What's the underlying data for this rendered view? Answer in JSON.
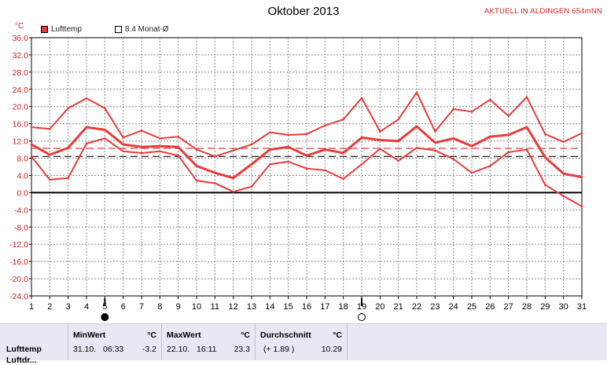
{
  "header": {
    "title": "Oktober 2013",
    "station": "AKTUELL IN ALDINGEN 654mNN",
    "unit": "°C"
  },
  "legend": [
    {
      "label": "Lufttemp",
      "color": "#e83c3c",
      "filled": true
    },
    {
      "label": "8.4 Monat-Ø",
      "color": "#ffffff",
      "filled": false
    }
  ],
  "moon_marks": [
    {
      "day": 5,
      "phase": "new-moon"
    },
    {
      "day": 19,
      "phase": "full-moon"
    }
  ],
  "chart_data": {
    "type": "line",
    "title": "Oktober 2013",
    "ylabel": "°C",
    "x": [
      1,
      2,
      3,
      4,
      5,
      6,
      7,
      8,
      9,
      10,
      11,
      12,
      13,
      14,
      15,
      16,
      17,
      18,
      19,
      20,
      21,
      22,
      23,
      24,
      25,
      26,
      27,
      28,
      29,
      30,
      31
    ],
    "xlim": [
      1,
      31
    ],
    "ylim": [
      -24,
      36
    ],
    "yticks": [
      "36.0",
      "32.0",
      "28.0",
      "24.0",
      "20.0",
      "16.0",
      "12.0",
      "8.0",
      "4.0",
      "0.0",
      "-4.0",
      "-8.0",
      "-12.0",
      "-16.0",
      "-20.0",
      "-24.0"
    ],
    "grid": true,
    "series": [
      {
        "role": "max",
        "color": "#e83c3c",
        "values": [
          15.2,
          14.8,
          19.6,
          21.9,
          19.6,
          12.8,
          14.4,
          12.6,
          13.0,
          10.0,
          8.4,
          9.8,
          11.2,
          14.0,
          13.4,
          13.6,
          15.6,
          17.0,
          22.0,
          14.2,
          17.0,
          23.3,
          14.2,
          19.4,
          18.8,
          21.6,
          17.8,
          22.2,
          13.6,
          11.8,
          13.8
        ]
      },
      {
        "role": "avg",
        "color": "#e83c3c",
        "values": [
          11.2,
          8.8,
          10.4,
          15.2,
          14.6,
          11.2,
          10.6,
          10.8,
          10.6,
          6.2,
          4.6,
          3.4,
          6.6,
          10.0,
          10.6,
          8.6,
          10.0,
          9.2,
          12.8,
          12.2,
          12.0,
          15.4,
          11.6,
          12.6,
          10.8,
          13.0,
          13.4,
          15.2,
          8.2,
          4.4,
          3.6
        ]
      },
      {
        "role": "min",
        "color": "#e83c3c",
        "values": [
          8.4,
          3.0,
          3.4,
          11.4,
          12.6,
          9.6,
          9.2,
          9.6,
          8.6,
          2.8,
          2.2,
          0.2,
          1.4,
          6.6,
          7.2,
          5.6,
          5.2,
          3.2,
          6.6,
          10.2,
          7.4,
          10.4,
          9.8,
          7.8,
          4.6,
          6.2,
          9.4,
          10.0,
          1.8,
          -0.8,
          -3.2
        ]
      }
    ],
    "reference_lines": [
      {
        "name": "8.4 Monat-Ø",
        "value": 8.4,
        "color": "#222222",
        "style": "dashed"
      },
      {
        "value": 10.29,
        "color": "#e83c3c",
        "style": "dashed"
      }
    ]
  },
  "stats": {
    "row_label": "Lufttemp",
    "row_label_2": "Luftdr...",
    "min": {
      "header": "MinWert",
      "unit": "°C",
      "date": "31.10.",
      "time": "06:33",
      "value": "-3.2"
    },
    "max": {
      "header": "MaxWert",
      "unit": "°C",
      "date": "22.10.",
      "time": "16:11",
      "value": "23.3"
    },
    "avg": {
      "header": "Durchschnitt",
      "unit": "°C",
      "delta": "(+ 1.89 )",
      "value": "10.29"
    }
  }
}
